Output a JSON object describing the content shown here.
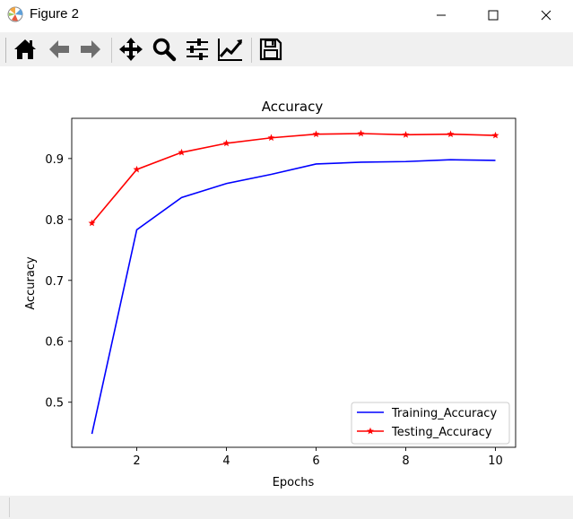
{
  "window": {
    "title": "Figure 2",
    "controls": [
      "minimize",
      "maximize",
      "close"
    ]
  },
  "toolbar": {
    "buttons": [
      {
        "name": "home",
        "icon": "home-icon"
      },
      {
        "name": "back",
        "icon": "left-arrow-icon"
      },
      {
        "name": "forward",
        "icon": "right-arrow-icon"
      },
      {
        "name": "pan",
        "icon": "move-icon"
      },
      {
        "name": "zoom",
        "icon": "magnifier-icon"
      },
      {
        "name": "configure-subplots",
        "icon": "sliders-icon"
      },
      {
        "name": "edit-axis",
        "icon": "line-chart-icon"
      },
      {
        "name": "save",
        "icon": "floppy-disk-icon"
      }
    ]
  },
  "chart_data": {
    "type": "line",
    "title": "Accuracy",
    "xlabel": "Epochs",
    "ylabel": "Accuracy",
    "xlim": [
      0.55,
      10.45
    ],
    "ylim": [
      0.426,
      0.966
    ],
    "xticks": [
      2,
      4,
      6,
      8,
      10
    ],
    "yticks": [
      0.5,
      0.6,
      0.7,
      0.8,
      0.9
    ],
    "x": [
      1,
      2,
      3,
      4,
      5,
      6,
      7,
      8,
      9,
      10
    ],
    "series": [
      {
        "name": "Training_Accuracy",
        "color": "#0000ff",
        "marker": "none",
        "values": [
          0.448,
          0.783,
          0.836,
          0.859,
          0.874,
          0.891,
          0.894,
          0.895,
          0.898,
          0.897
        ]
      },
      {
        "name": "Testing_Accuracy",
        "color": "#ff0000",
        "marker": "star",
        "values": [
          0.794,
          0.882,
          0.91,
          0.925,
          0.934,
          0.94,
          0.941,
          0.939,
          0.94,
          0.938
        ]
      }
    ],
    "legend_position": "lower-right",
    "grid": false
  }
}
